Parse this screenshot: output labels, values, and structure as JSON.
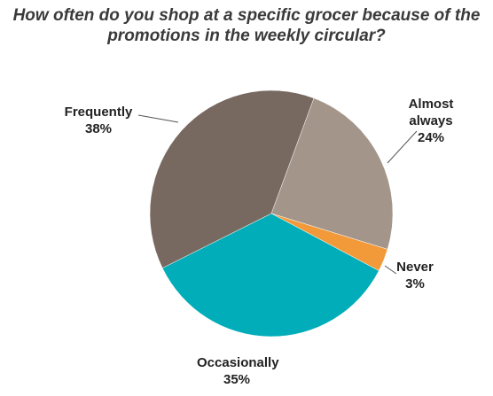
{
  "chart_data": {
    "type": "pie",
    "title": "How often do you shop at a specific grocer because of the promotions in the weekly circular?",
    "categories": [
      "Almost always",
      "Never",
      "Occasionally",
      "Frequently"
    ],
    "values": [
      24,
      3,
      35,
      38
    ],
    "value_labels": [
      "24%",
      "3%",
      "35%",
      "38%"
    ],
    "colors": [
      "#a39589",
      "#f29a3a",
      "#00adb9",
      "#786960"
    ]
  }
}
